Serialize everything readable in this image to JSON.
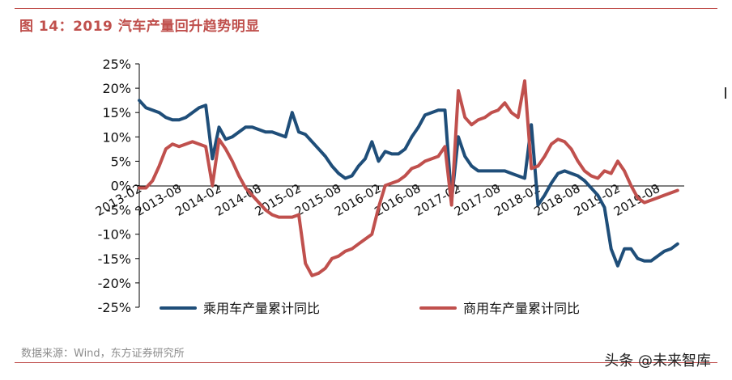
{
  "figure": {
    "title": "图 14：2019 汽车产量回升趋势明显",
    "source": "数据来源：Wind，东方证券研究所",
    "watermark": "头条 @未来智库"
  },
  "chart_data": {
    "type": "line",
    "title": "",
    "xlabel": "",
    "ylabel": "",
    "ylim": [
      -25,
      25
    ],
    "yticks": [
      25,
      20,
      15,
      10,
      5,
      0,
      -5,
      -10,
      -15,
      -20,
      -25
    ],
    "ytick_labels": [
      "25%",
      "20%",
      "15%",
      "10%",
      "5%",
      "0%",
      "-5%",
      "-10%",
      "-15%",
      "-20%",
      "-25%"
    ],
    "x_range": [
      "2013-02",
      "2019-12"
    ],
    "xtick_labels": [
      "2013-02",
      "2013-08",
      "2014-02",
      "2014-08",
      "2015-02",
      "2015-08",
      "2016-02",
      "2016-08",
      "2017-02",
      "2017-08",
      "2018-02",
      "2018-08",
      "2019-02",
      "2019-08"
    ],
    "legend_position": "bottom",
    "grid": false,
    "series": [
      {
        "name": "乘用车产量累计同比",
        "color": "#1f4e79",
        "x": [
          "2013-02",
          "2013-03",
          "2013-04",
          "2013-05",
          "2013-06",
          "2013-07",
          "2013-08",
          "2013-09",
          "2013-10",
          "2013-11",
          "2013-12",
          "2014-01",
          "2014-02",
          "2014-03",
          "2014-04",
          "2014-05",
          "2014-06",
          "2014-07",
          "2014-08",
          "2014-09",
          "2014-10",
          "2014-11",
          "2014-12",
          "2015-01",
          "2015-02",
          "2015-03",
          "2015-04",
          "2015-05",
          "2015-06",
          "2015-07",
          "2015-08",
          "2015-09",
          "2015-10",
          "2015-11",
          "2015-12",
          "2016-01",
          "2016-02",
          "2016-03",
          "2016-04",
          "2016-05",
          "2016-06",
          "2016-07",
          "2016-08",
          "2016-09",
          "2016-10",
          "2016-11",
          "2016-12",
          "2017-01",
          "2017-02",
          "2017-03",
          "2017-04",
          "2017-05",
          "2017-06",
          "2017-07",
          "2017-08",
          "2017-09",
          "2017-10",
          "2017-11",
          "2017-12",
          "2018-01",
          "2018-02",
          "2018-03",
          "2018-04",
          "2018-05",
          "2018-06",
          "2018-07",
          "2018-08",
          "2018-09",
          "2018-10",
          "2018-11",
          "2018-12",
          "2019-01",
          "2019-02",
          "2019-03",
          "2019-04",
          "2019-05",
          "2019-06",
          "2019-07",
          "2019-08",
          "2019-09",
          "2019-10",
          "2019-11"
        ],
        "values": [
          17.5,
          16.0,
          15.5,
          15.0,
          14.0,
          13.5,
          13.5,
          14.0,
          15.0,
          16.0,
          16.5,
          5.5,
          12.0,
          9.5,
          10.0,
          11.0,
          12.0,
          12.0,
          11.5,
          11.0,
          11.0,
          10.5,
          10.0,
          15.0,
          11.0,
          10.5,
          9.0,
          7.5,
          6.0,
          4.0,
          2.5,
          1.5,
          2.0,
          4.0,
          5.5,
          9.0,
          5.0,
          7.0,
          6.5,
          6.5,
          7.5,
          10.0,
          12.0,
          14.5,
          15.0,
          15.5,
          15.5,
          -3.0,
          10.0,
          6.0,
          4.0,
          3.0,
          3.0,
          3.0,
          3.0,
          3.0,
          2.5,
          2.0,
          1.5,
          12.5,
          -4.0,
          -2.0,
          0.5,
          2.5,
          3.0,
          2.5,
          2.0,
          1.0,
          -0.5,
          -2.0,
          -4.5,
          -13.0,
          -16.5,
          -13.0,
          -13.0,
          -15.0,
          -15.5,
          -15.5,
          -14.5,
          -13.5,
          -13.0,
          -12.0
        ]
      },
      {
        "name": "商用车产量累计同比",
        "color": "#c0504d",
        "x": [
          "2013-02",
          "2013-03",
          "2013-04",
          "2013-05",
          "2013-06",
          "2013-07",
          "2013-08",
          "2013-09",
          "2013-10",
          "2013-11",
          "2013-12",
          "2014-01",
          "2014-02",
          "2014-03",
          "2014-04",
          "2014-05",
          "2014-06",
          "2014-07",
          "2014-08",
          "2014-09",
          "2014-10",
          "2014-11",
          "2014-12",
          "2015-01",
          "2015-02",
          "2015-03",
          "2015-04",
          "2015-05",
          "2015-06",
          "2015-07",
          "2015-08",
          "2015-09",
          "2015-10",
          "2015-11",
          "2015-12",
          "2016-01",
          "2016-02",
          "2016-03",
          "2016-04",
          "2016-05",
          "2016-06",
          "2016-07",
          "2016-08",
          "2016-09",
          "2016-10",
          "2016-11",
          "2016-12",
          "2017-01",
          "2017-02",
          "2017-03",
          "2017-04",
          "2017-05",
          "2017-06",
          "2017-07",
          "2017-08",
          "2017-09",
          "2017-10",
          "2017-11",
          "2017-12",
          "2018-01",
          "2018-02",
          "2018-03",
          "2018-04",
          "2018-05",
          "2018-06",
          "2018-07",
          "2018-08",
          "2018-09",
          "2018-10",
          "2018-11",
          "2018-12",
          "2019-01",
          "2019-02",
          "2019-03",
          "2019-04",
          "2019-05",
          "2019-06",
          "2019-07",
          "2019-08",
          "2019-09",
          "2019-10",
          "2019-11"
        ],
        "values": [
          -0.5,
          -0.5,
          1.0,
          4.0,
          7.5,
          8.5,
          8.0,
          8.5,
          9.0,
          8.5,
          8.0,
          0.0,
          9.5,
          7.5,
          5.0,
          2.0,
          -0.5,
          -2.0,
          -3.5,
          -5.0,
          -6.0,
          -6.5,
          -6.5,
          -6.5,
          -6.0,
          -16.0,
          -18.5,
          -18.0,
          -17.0,
          -15.0,
          -14.5,
          -13.5,
          -13.0,
          -12.0,
          -11.0,
          -10.0,
          -4.5,
          0.0,
          0.5,
          1.0,
          2.0,
          3.5,
          4.0,
          5.0,
          5.5,
          6.0,
          8.0,
          -4.0,
          19.5,
          14.0,
          12.5,
          13.5,
          14.0,
          15.0,
          15.5,
          17.0,
          15.0,
          14.0,
          21.5,
          3.5,
          4.0,
          6.0,
          8.5,
          9.5,
          9.0,
          7.5,
          5.0,
          3.0,
          2.0,
          1.5,
          3.0,
          2.5,
          5.0,
          3.0,
          0.0,
          -2.5,
          -3.5,
          -3.0,
          -2.5,
          -2.0,
          -1.5,
          -1.0
        ]
      }
    ]
  }
}
